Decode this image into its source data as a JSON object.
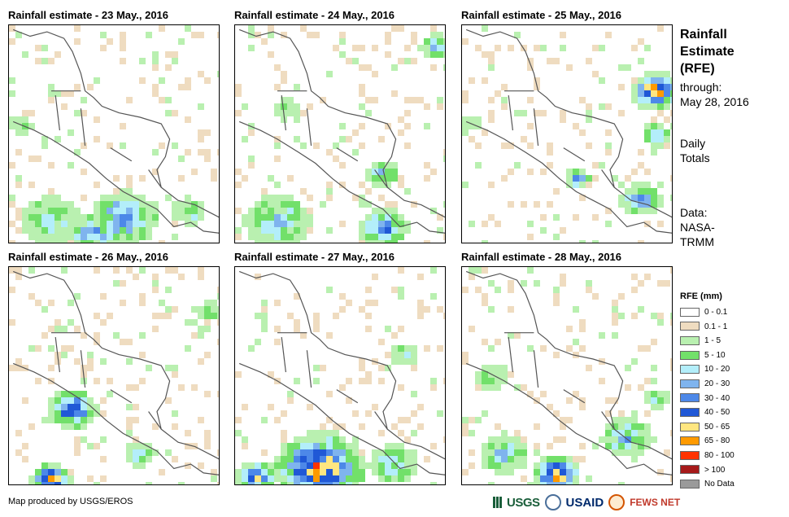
{
  "panels": [
    {
      "title": "Rainfall estimate - 23 May., 2016"
    },
    {
      "title": "Rainfall estimate - 24 May., 2016"
    },
    {
      "title": "Rainfall estimate - 25 May., 2016"
    },
    {
      "title": "Rainfall estimate - 26 May., 2016"
    },
    {
      "title": "Rainfall estimate - 27 May., 2016"
    },
    {
      "title": "Rainfall estimate - 28 May., 2016"
    }
  ],
  "side": {
    "title_line1": "Rainfall",
    "title_line2": "Estimate",
    "title_line3": "(RFE)",
    "through": "through:",
    "date": "May 28, 2016",
    "daily1": "Daily",
    "daily2": "Totals",
    "data1": "Data:",
    "data2": "NASA-",
    "data3": "TRMM"
  },
  "legend": {
    "heading": "RFE (mm)",
    "items": [
      {
        "label": "0 - 0.1",
        "color": "#ffffff"
      },
      {
        "label": "0.1 - 1",
        "color": "#efdcc0"
      },
      {
        "label": "1 - 5",
        "color": "#b9f0b0"
      },
      {
        "label": "5 - 10",
        "color": "#72e06a"
      },
      {
        "label": "10 - 20",
        "color": "#b3eefa"
      },
      {
        "label": "20 - 30",
        "color": "#7fb4ee"
      },
      {
        "label": "30 - 40",
        "color": "#4d88e8"
      },
      {
        "label": "40 - 50",
        "color": "#2058d6"
      },
      {
        "label": "50 - 65",
        "color": "#ffe680"
      },
      {
        "label": "65 - 80",
        "color": "#ff9a00"
      },
      {
        "label": "80 - 100",
        "color": "#ff3300"
      },
      {
        "label": "> 100",
        "color": "#a61a1a"
      },
      {
        "label": "No Data",
        "color": "#9a9a9a"
      }
    ]
  },
  "footer": {
    "credit": "Map produced by USGS/EROS",
    "logo_usgs": "USGS",
    "logo_usaid": "USAID",
    "logo_fews": "FEWS NET"
  },
  "rain_patterns": [
    {
      "blobs": [
        [
          0.55,
          0.88,
          0.16,
          6
        ],
        [
          0.4,
          0.95,
          0.12,
          5
        ],
        [
          0.2,
          0.9,
          0.15,
          3
        ],
        [
          0.85,
          0.85,
          0.08,
          3
        ],
        [
          0.05,
          0.45,
          0.06,
          2
        ]
      ]
    },
    {
      "blobs": [
        [
          0.2,
          0.9,
          0.16,
          4
        ],
        [
          0.7,
          0.93,
          0.12,
          6
        ],
        [
          0.7,
          0.68,
          0.08,
          4
        ],
        [
          0.95,
          0.1,
          0.08,
          4
        ],
        [
          0.25,
          0.38,
          0.06,
          2
        ]
      ]
    },
    {
      "blobs": [
        [
          0.92,
          0.3,
          0.12,
          9
        ],
        [
          0.92,
          0.5,
          0.07,
          5
        ],
        [
          0.85,
          0.8,
          0.1,
          5
        ],
        [
          0.55,
          0.7,
          0.06,
          5
        ],
        [
          0.05,
          0.45,
          0.05,
          2
        ]
      ]
    },
    {
      "blobs": [
        [
          0.3,
          0.65,
          0.12,
          7
        ],
        [
          0.2,
          0.97,
          0.1,
          9
        ],
        [
          0.62,
          0.85,
          0.08,
          3
        ],
        [
          0.95,
          0.2,
          0.06,
          2
        ]
      ]
    },
    {
      "blobs": [
        [
          0.4,
          0.92,
          0.22,
          9
        ],
        [
          0.1,
          0.96,
          0.1,
          8
        ],
        [
          0.75,
          0.9,
          0.12,
          4
        ],
        [
          0.8,
          0.4,
          0.07,
          2
        ]
      ]
    },
    {
      "blobs": [
        [
          0.45,
          0.95,
          0.12,
          9
        ],
        [
          0.2,
          0.85,
          0.12,
          4
        ],
        [
          0.78,
          0.78,
          0.12,
          4
        ],
        [
          0.15,
          0.5,
          0.08,
          2
        ],
        [
          0.92,
          0.6,
          0.06,
          2
        ]
      ]
    }
  ]
}
